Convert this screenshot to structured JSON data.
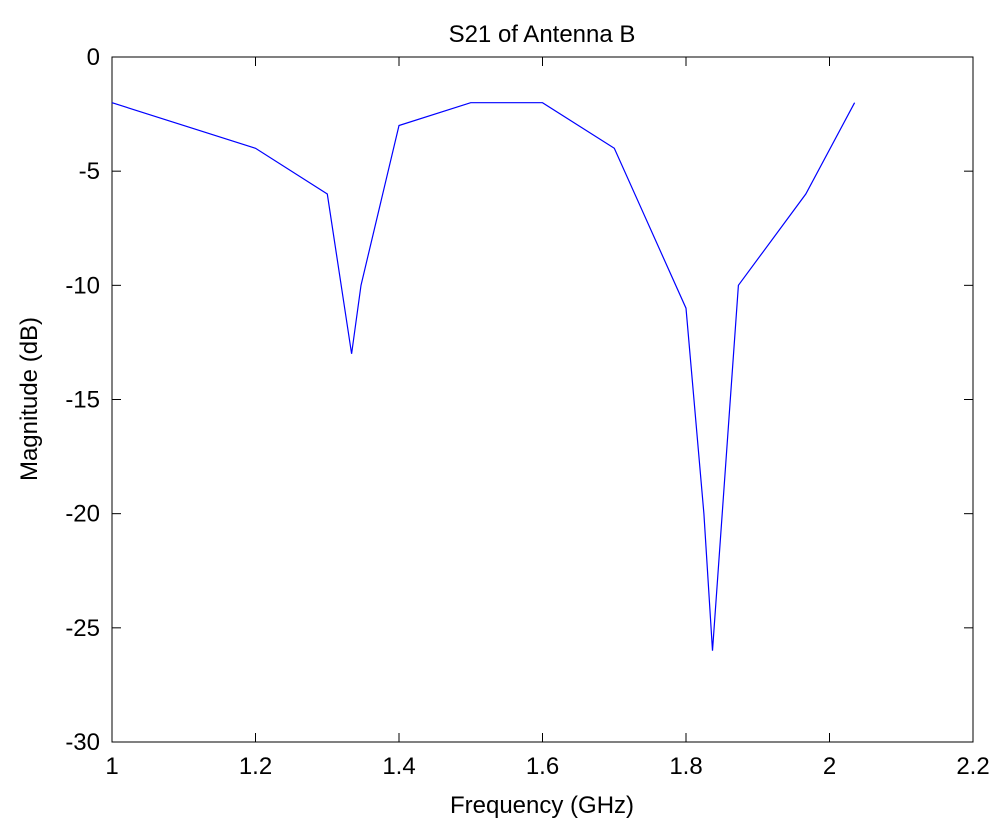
{
  "chart_data": {
    "type": "line",
    "title": "S21 of Antenna B",
    "xlabel": "Frequency (GHz)",
    "ylabel": "Magnitude (dB)",
    "xlim": [
      1,
      2.2
    ],
    "ylim": [
      -30,
      0
    ],
    "xticks": [
      1,
      1.2,
      1.4,
      1.6,
      1.8,
      2,
      2.2
    ],
    "xtick_labels": [
      "1",
      "1.2",
      "1.4",
      "1.6",
      "1.8",
      "2",
      "2.2"
    ],
    "yticks": [
      -30,
      -25,
      -20,
      -15,
      -10,
      -5,
      0
    ],
    "ytick_labels": [
      "-30",
      "-25",
      "-20",
      "-15",
      "-10",
      "-5",
      "0"
    ],
    "grid": false,
    "series": [
      {
        "color": "#0000ff",
        "x": [
          1.0,
          1.2,
          1.3,
          1.334,
          1.347,
          1.4,
          1.5,
          1.6,
          1.7,
          1.8,
          1.825,
          1.837,
          1.873,
          1.967,
          2.035
        ],
        "y": [
          -2,
          -4,
          -6,
          -13,
          -10,
          -3,
          -2,
          -2,
          -4,
          -11,
          -20,
          -26,
          -10,
          -6,
          -2
        ]
      }
    ]
  }
}
